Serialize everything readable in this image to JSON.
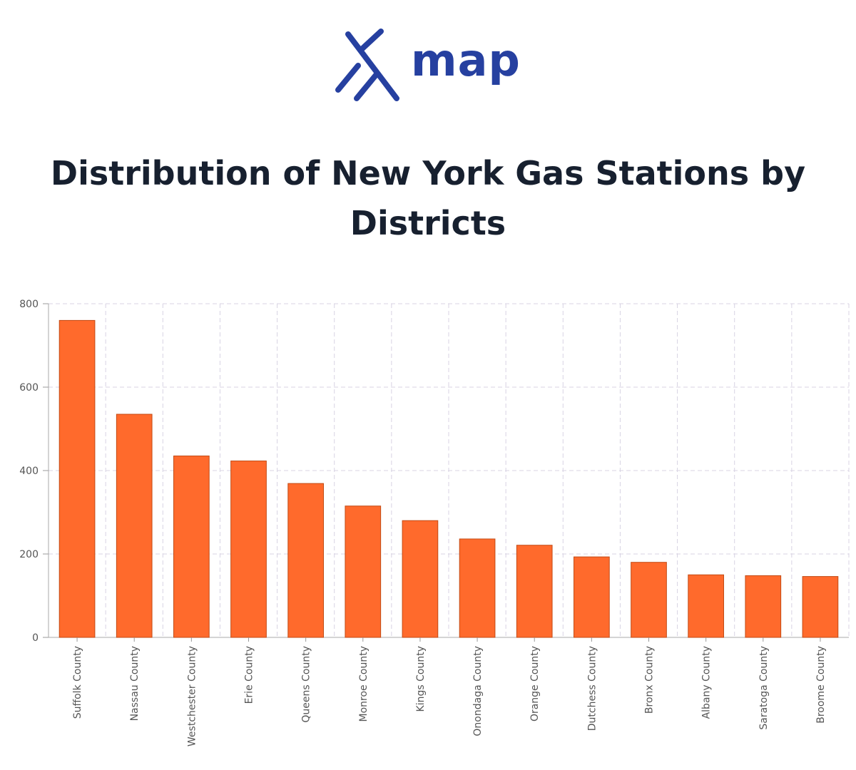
{
  "brand": {
    "name": "map",
    "color": "#2640a0",
    "icon": "x-logo-icon"
  },
  "title": "Distribution of New York Gas Stations by Districts",
  "chart_data": {
    "type": "bar",
    "title": "Distribution of New York Gas Stations by Districts",
    "xlabel": "",
    "ylabel": "",
    "categories": [
      "Suffolk County",
      "Nassau County",
      "Westchester County",
      "Erie County",
      "Queens County",
      "Monroe County",
      "Kings County",
      "Onondaga County",
      "Orange County",
      "Dutchess County",
      "Bronx County",
      "Albany County",
      "Saratoga County",
      "Broome County"
    ],
    "values": [
      760,
      535,
      435,
      423,
      369,
      315,
      280,
      236,
      221,
      193,
      180,
      150,
      148,
      146
    ],
    "ylim": [
      0,
      800
    ],
    "yticks": [
      "0",
      "200",
      "400",
      "600",
      "800"
    ],
    "grid": true,
    "bar_color": "#ff6a2c",
    "bar_border_color": "#c24a14",
    "grid_color": "#d8d3e3"
  }
}
